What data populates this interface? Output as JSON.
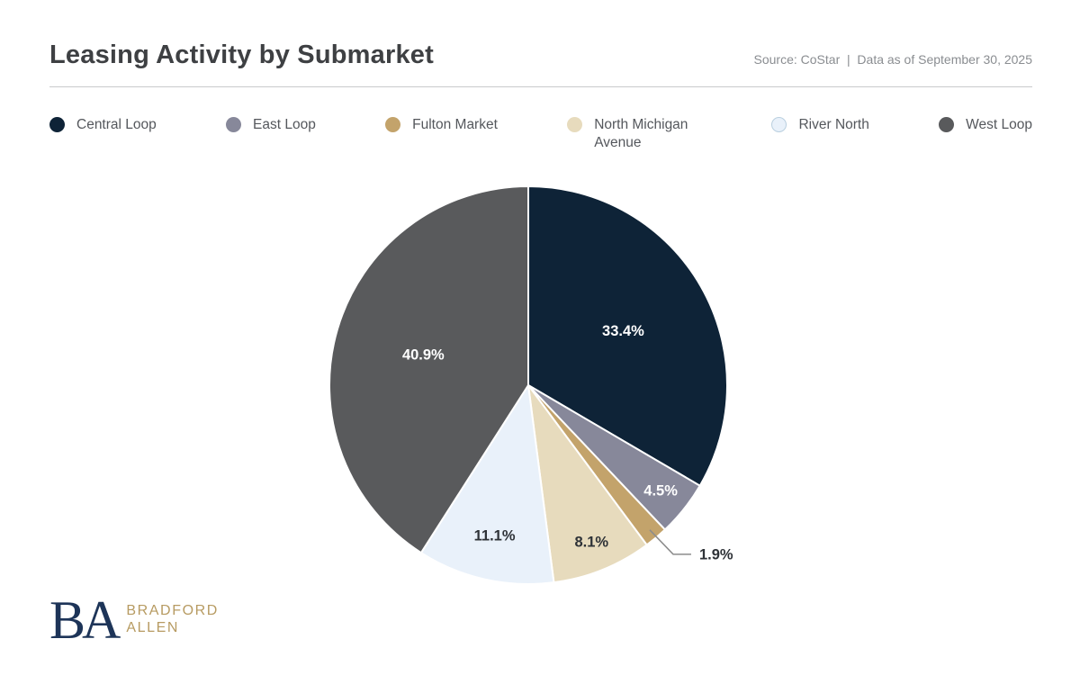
{
  "header": {
    "title": "Leasing Activity by Submarket",
    "source": "Source: CoStar  |  Data as of September 30, 2025"
  },
  "chart_data": {
    "type": "pie",
    "title": "Leasing Activity by Submarket",
    "unit": "%",
    "start_angle": "12 o'clock, clockwise",
    "legend_position": "top",
    "slices": [
      {
        "label": "Central Loop",
        "value": 33.4,
        "color": "#0e2337",
        "label_color": "#ffffff"
      },
      {
        "label": "East Loop",
        "value": 4.5,
        "color": "#87889a",
        "label_color": "#ffffff"
      },
      {
        "label": "Fulton Market",
        "value": 1.9,
        "color": "#c3a36b",
        "label_color": "#2e3237",
        "label_outside": true
      },
      {
        "label": "North Michigan Avenue",
        "value": 8.1,
        "color": "#e7dbbd",
        "label_color": "#2e3237"
      },
      {
        "label": "River North",
        "value": 11.1,
        "color": "#e9f1fa",
        "label_color": "#2e3237",
        "legend_border": "#b9cfdf"
      },
      {
        "label": "West Loop",
        "value": 40.9,
        "color": "#595a5c",
        "label_color": "#ffffff"
      }
    ],
    "slice_stroke_color": "#ffffff",
    "leader_line_color": "#8c8c8c"
  },
  "logo": {
    "monogram": "BA",
    "line1": "BRADFORD",
    "line2": "ALLEN"
  }
}
